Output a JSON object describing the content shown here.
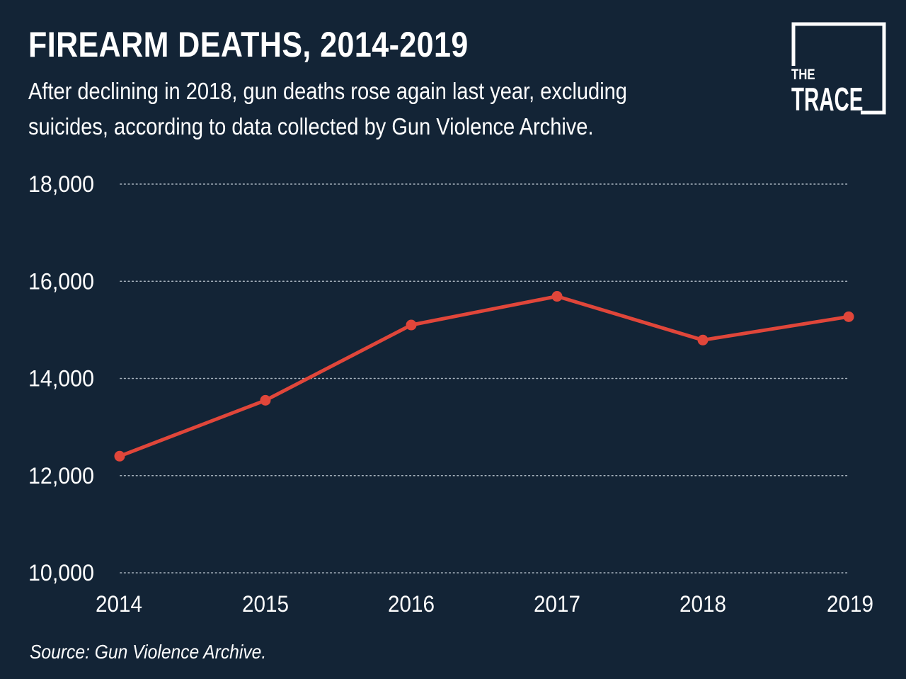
{
  "header": {
    "title": "FIREARM DEATHS, 2014-2019",
    "subtitle": "After declining in 2018, gun deaths rose again last year, excluding suicides, according to data collected by Gun Violence Archive."
  },
  "logo": {
    "line1": "THE",
    "line2": "TRACE"
  },
  "footer": {
    "source": "Source: Gun Violence Archive."
  },
  "colors": {
    "background": "#132436",
    "line": "#e0463a",
    "text": "#ffffff",
    "grid": "#a9b4bf"
  },
  "chart_data": {
    "type": "line",
    "x": [
      "2014",
      "2015",
      "2016",
      "2017",
      "2018",
      "2019"
    ],
    "series": [
      {
        "values": [
          12400,
          13550,
          15100,
          15690,
          14790,
          15270
        ]
      }
    ],
    "ylim": [
      10000,
      18000
    ],
    "yticks": [
      10000,
      12000,
      14000,
      16000,
      18000
    ],
    "ytick_labels": [
      "10,000",
      "12,000",
      "14,000",
      "16,000",
      "18,000"
    ],
    "grid": "horizontal dotted",
    "legend": "none"
  }
}
